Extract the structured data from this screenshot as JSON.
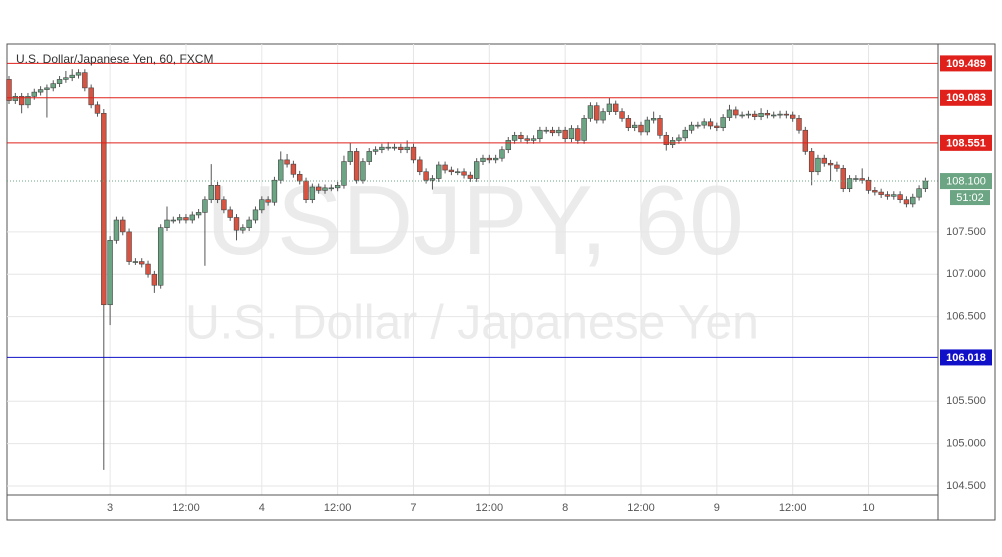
{
  "chart_data": {
    "type": "candlestick",
    "title": "U.S. Dollar/Japanese Yen, 60, FXCM",
    "watermark": "USDJPY, 60",
    "watermark_subtitle": "U.S. Dollar / Japanese Yen",
    "categories": [
      null,
      null,
      null,
      null,
      null,
      null,
      null,
      null,
      null,
      null,
      null,
      null,
      null,
      null,
      null,
      null,
      "3",
      null,
      null,
      null,
      null,
      null,
      null,
      null,
      null,
      null,
      null,
      null,
      "12:00",
      null,
      null,
      null,
      null,
      null,
      null,
      null,
      null,
      null,
      null,
      null,
      "4",
      null,
      null,
      null,
      null,
      null,
      null,
      null,
      null,
      null,
      null,
      null,
      "12:00",
      null,
      null,
      null,
      null,
      null,
      null,
      null,
      null,
      null,
      null,
      null,
      "7",
      null,
      null,
      null,
      null,
      null,
      null,
      null,
      null,
      null,
      null,
      null,
      "12:00",
      null,
      null,
      null,
      null,
      null,
      null,
      null,
      null,
      null,
      null,
      null,
      "8",
      null,
      null,
      null,
      null,
      null,
      null,
      null,
      null,
      null,
      null,
      null,
      "12:00",
      null,
      null,
      null,
      null,
      null,
      null,
      null,
      null,
      null,
      null,
      null,
      "9",
      null,
      null,
      null,
      null,
      null,
      null,
      null,
      null,
      null,
      null,
      null,
      "12:00",
      null,
      null,
      null,
      null,
      null,
      null,
      null,
      null,
      null,
      null,
      null,
      "10",
      null,
      null,
      null,
      null,
      null,
      null,
      null,
      null,
      null
    ],
    "open": [
      109.3,
      109.05,
      109.1,
      109.0,
      109.1,
      109.15,
      109.18,
      109.2,
      109.25,
      109.3,
      109.32,
      109.35,
      109.38,
      109.2,
      109.0,
      108.9,
      106.64,
      107.4,
      107.64,
      107.5,
      107.15,
      107.15,
      107.12,
      107.0,
      106.87,
      107.55,
      107.64,
      107.64,
      107.67,
      107.64,
      107.7,
      107.73,
      107.88,
      108.05,
      107.88,
      107.76,
      107.67,
      107.52,
      107.55,
      107.64,
      107.76,
      107.88,
      107.85,
      108.11,
      108.35,
      108.3,
      108.18,
      108.1,
      107.88,
      108.03,
      107.99,
      108.02,
      108.02,
      108.05,
      108.33,
      108.45,
      108.11,
      108.33,
      108.45,
      108.47,
      108.5,
      108.5,
      108.5,
      108.47,
      108.5,
      108.35,
      108.21,
      108.11,
      108.13,
      108.29,
      108.23,
      108.21,
      108.21,
      108.17,
      108.13,
      108.33,
      108.37,
      108.35,
      108.37,
      108.47,
      108.58,
      108.64,
      108.6,
      108.58,
      108.6,
      108.7,
      108.7,
      108.67,
      108.7,
      108.6,
      108.72,
      108.58,
      108.84,
      108.99,
      108.82,
      108.92,
      109.01,
      108.92,
      108.84,
      108.73,
      108.76,
      108.68,
      108.82,
      108.84,
      108.64,
      108.53,
      108.58,
      108.61,
      108.7,
      108.76,
      108.76,
      108.8,
      108.75,
      108.73,
      108.85,
      108.94,
      108.88,
      108.88,
      108.89,
      108.86,
      108.9,
      108.88,
      108.88,
      108.89,
      108.88,
      108.84,
      108.7,
      108.45,
      108.21,
      108.37,
      108.31,
      108.29,
      108.25,
      108.01,
      108.13,
      108.13,
      108.11,
      107.99,
      107.97,
      107.94,
      107.92,
      107.94,
      107.88,
      107.83,
      107.91,
      108.01
    ],
    "high": [
      109.34,
      109.14,
      109.14,
      109.14,
      109.19,
      109.22,
      109.24,
      109.29,
      109.34,
      109.4,
      109.42,
      109.42,
      109.42,
      109.24,
      109.04,
      108.95,
      107.45,
      107.68,
      107.68,
      107.54,
      107.19,
      107.19,
      107.16,
      107.04,
      107.59,
      107.8,
      107.68,
      107.71,
      107.71,
      107.74,
      107.77,
      107.92,
      108.3,
      108.09,
      107.92,
      107.8,
      107.71,
      107.59,
      107.68,
      107.8,
      107.92,
      107.92,
      108.15,
      108.45,
      108.42,
      108.34,
      108.22,
      108.14,
      108.07,
      108.07,
      108.06,
      108.06,
      108.09,
      108.4,
      108.55,
      108.49,
      108.37,
      108.49,
      108.51,
      108.54,
      108.56,
      108.54,
      108.54,
      108.58,
      108.54,
      108.39,
      108.25,
      108.17,
      108.33,
      108.33,
      108.27,
      108.25,
      108.25,
      108.21,
      108.37,
      108.41,
      108.41,
      108.41,
      108.51,
      108.62,
      108.68,
      108.68,
      108.64,
      108.64,
      108.74,
      108.74,
      108.74,
      108.74,
      108.74,
      108.76,
      108.76,
      108.88,
      109.03,
      109.03,
      108.96,
      109.08,
      109.05,
      108.96,
      108.88,
      108.8,
      108.8,
      108.86,
      108.92,
      108.88,
      108.68,
      108.62,
      108.65,
      108.74,
      108.8,
      108.8,
      108.84,
      108.84,
      108.79,
      108.89,
      109.0,
      108.98,
      108.92,
      108.93,
      108.93,
      108.96,
      108.94,
      108.92,
      108.93,
      108.93,
      108.92,
      108.88,
      108.74,
      108.49,
      108.41,
      108.41,
      108.35,
      108.33,
      108.29,
      108.17,
      108.17,
      108.25,
      108.15,
      108.03,
      108.01,
      107.98,
      107.98,
      107.98,
      107.92,
      107.95,
      108.05,
      108.14
    ],
    "low": [
      109.01,
      109.01,
      108.9,
      108.96,
      109.06,
      109.11,
      108.85,
      109.16,
      109.21,
      109.26,
      109.28,
      109.31,
      109.16,
      108.96,
      108.86,
      104.69,
      106.4,
      107.36,
      107.46,
      107.11,
      107.11,
      107.08,
      106.96,
      106.78,
      106.83,
      107.51,
      107.6,
      107.6,
      107.6,
      107.6,
      107.66,
      107.1,
      107.84,
      107.84,
      107.72,
      107.63,
      107.4,
      107.48,
      107.51,
      107.6,
      107.72,
      107.81,
      107.81,
      108.07,
      108.26,
      108.14,
      108.06,
      107.84,
      107.84,
      107.95,
      107.95,
      107.98,
      107.98,
      108.01,
      108.29,
      108.07,
      108.07,
      108.29,
      108.41,
      108.43,
      108.46,
      108.46,
      108.43,
      108.43,
      108.31,
      108.17,
      108.07,
      108.0,
      108.09,
      108.19,
      108.17,
      108.17,
      108.13,
      108.09,
      108.09,
      108.29,
      108.31,
      108.31,
      108.33,
      108.43,
      108.54,
      108.56,
      108.54,
      108.54,
      108.56,
      108.66,
      108.63,
      108.63,
      108.56,
      108.56,
      108.54,
      108.54,
      108.8,
      108.78,
      108.78,
      108.88,
      108.88,
      108.8,
      108.69,
      108.69,
      108.64,
      108.64,
      108.78,
      108.6,
      108.46,
      108.49,
      108.54,
      108.57,
      108.66,
      108.72,
      108.72,
      108.71,
      108.69,
      108.69,
      108.81,
      108.84,
      108.84,
      108.84,
      108.82,
      108.82,
      108.84,
      108.84,
      108.84,
      108.84,
      108.8,
      108.66,
      108.41,
      108.05,
      108.17,
      108.27,
      108.1,
      108.21,
      107.97,
      107.97,
      108.09,
      108.07,
      107.95,
      107.93,
      107.9,
      107.88,
      107.88,
      107.84,
      107.79,
      107.79,
      107.87,
      107.97
    ],
    "close": [
      109.05,
      109.1,
      109.0,
      109.1,
      109.15,
      109.18,
      109.2,
      109.25,
      109.3,
      109.32,
      109.35,
      109.38,
      109.2,
      109.0,
      108.9,
      106.64,
      107.4,
      107.64,
      107.5,
      107.15,
      107.15,
      107.12,
      107.0,
      106.87,
      107.55,
      107.64,
      107.64,
      107.67,
      107.64,
      107.7,
      107.73,
      107.88,
      108.05,
      107.88,
      107.76,
      107.67,
      107.52,
      107.55,
      107.64,
      107.76,
      107.88,
      107.85,
      108.11,
      108.35,
      108.3,
      108.18,
      108.1,
      107.88,
      108.03,
      107.99,
      108.02,
      108.02,
      108.05,
      108.33,
      108.45,
      108.11,
      108.33,
      108.45,
      108.47,
      108.5,
      108.5,
      108.5,
      108.47,
      108.5,
      108.35,
      108.21,
      108.11,
      108.13,
      108.29,
      108.23,
      108.21,
      108.21,
      108.17,
      108.13,
      108.33,
      108.37,
      108.35,
      108.37,
      108.47,
      108.58,
      108.64,
      108.6,
      108.58,
      108.6,
      108.7,
      108.7,
      108.67,
      108.7,
      108.6,
      108.72,
      108.58,
      108.84,
      108.99,
      108.82,
      108.92,
      109.01,
      108.92,
      108.84,
      108.73,
      108.76,
      108.68,
      108.82,
      108.84,
      108.64,
      108.53,
      108.58,
      108.61,
      108.7,
      108.76,
      108.76,
      108.8,
      108.75,
      108.73,
      108.85,
      108.94,
      108.88,
      108.88,
      108.89,
      108.86,
      108.9,
      108.88,
      108.88,
      108.89,
      108.88,
      108.84,
      108.7,
      108.45,
      108.21,
      108.37,
      108.31,
      108.29,
      108.25,
      108.01,
      108.13,
      108.13,
      108.11,
      107.99,
      107.97,
      107.94,
      107.92,
      107.94,
      107.88,
      107.83,
      107.91,
      108.01,
      108.1
    ],
    "up_color": "#6ba583",
    "down_color": "#d75442",
    "ylim": [
      104.394,
      109.718
    ],
    "yticks": [
      {
        "value": 104.5,
        "label": "104.500"
      },
      {
        "value": 105,
        "label": "105.000"
      },
      {
        "value": 105.5,
        "label": "105.500"
      },
      {
        "value": 106.5,
        "label": "106.500"
      },
      {
        "value": 107,
        "label": "107.000"
      },
      {
        "value": 107.5,
        "label": "107.500"
      }
    ],
    "grid": true,
    "levels": [
      {
        "value": 109.489,
        "color": "#e0201b"
      },
      {
        "value": 109.083,
        "color": "#e0201b"
      },
      {
        "value": 108.551,
        "color": "#e0201b"
      },
      {
        "value": 106.018,
        "color": "#1010c8"
      }
    ],
    "last_price": {
      "value": 108.1,
      "label": "108.100",
      "color": "#6ba583"
    },
    "countdown": "51:02"
  }
}
